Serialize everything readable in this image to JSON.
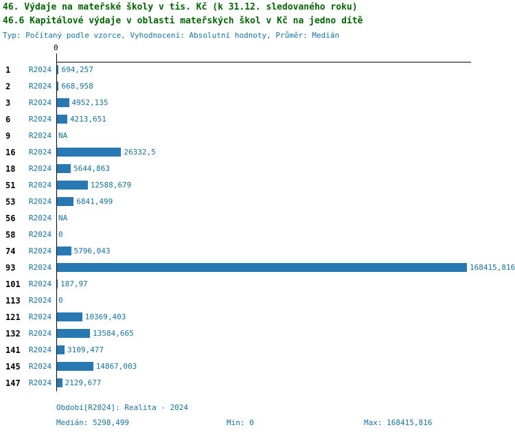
{
  "header": {
    "title_line1": "46. Výdaje na mateřské školy v tis. Kč (k 31.12. sledovaného roku)",
    "title_line2": "46.6 Kapitálové výdaje v oblasti mateřských škol v Kč na jedno dítě",
    "subtitle": "Typ: Počítaný podle vzorce, Vyhodnocení: Absolutní hodnoty, Průměr: Medián"
  },
  "colors": {
    "title_green": "#006400",
    "text_teal": "#17719f",
    "bar": "#2878b4",
    "axis": "#000000"
  },
  "chart_data": {
    "type": "bar",
    "orientation": "horizontal",
    "title": "46. Výdaje na mateřské školy v tis. Kč (k 31.12. sledovaného roku)",
    "subtitle": "46.6 Kapitálové výdaje v oblasti mateřských škol v Kč na jedno dítě",
    "series_label": "R2024",
    "axis_zero_label": "0",
    "xlabel": "",
    "ylabel": "",
    "xlim": [
      0,
      168415.816
    ],
    "grid": false,
    "legend": "none",
    "rows": [
      {
        "id": "1",
        "value": 694.257,
        "display": "694,257"
      },
      {
        "id": "2",
        "value": 668.958,
        "display": "668,958"
      },
      {
        "id": "3",
        "value": 4952.135,
        "display": "4952,135"
      },
      {
        "id": "6",
        "value": 4213.651,
        "display": "4213,651"
      },
      {
        "id": "9",
        "value": null,
        "display": "NA"
      },
      {
        "id": "16",
        "value": 26332.5,
        "display": "26332,5"
      },
      {
        "id": "18",
        "value": 5644.863,
        "display": "5644,863"
      },
      {
        "id": "51",
        "value": 12588.679,
        "display": "12588,679"
      },
      {
        "id": "53",
        "value": 6841.499,
        "display": "6841,499"
      },
      {
        "id": "56",
        "value": null,
        "display": "NA"
      },
      {
        "id": "58",
        "value": 0,
        "display": "0"
      },
      {
        "id": "74",
        "value": 5796.043,
        "display": "5796,043"
      },
      {
        "id": "93",
        "value": 168415.816,
        "display": "168415,816"
      },
      {
        "id": "101",
        "value": 187.97,
        "display": "187,97"
      },
      {
        "id": "113",
        "value": 0,
        "display": "0"
      },
      {
        "id": "121",
        "value": 10369.403,
        "display": "10369,403"
      },
      {
        "id": "132",
        "value": 13584.665,
        "display": "13584,665"
      },
      {
        "id": "141",
        "value": 3109.477,
        "display": "3109,477"
      },
      {
        "id": "145",
        "value": 14867.003,
        "display": "14867,003"
      },
      {
        "id": "147",
        "value": 2129.677,
        "display": "2129,677"
      }
    ],
    "stats": {
      "median": 5298.499,
      "min": 0,
      "max": 168415.816
    }
  },
  "footer": {
    "period": "Období[R2024]: Realita - 2024",
    "median": "Medián: 5298,499",
    "min": "Min: 0",
    "max": "Max: 168415,816"
  }
}
